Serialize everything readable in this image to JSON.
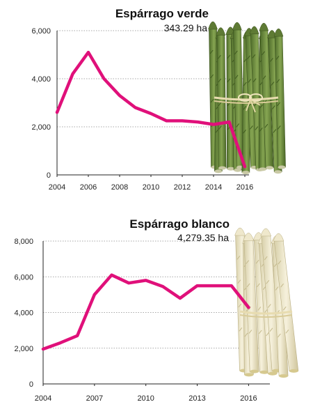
{
  "colors": {
    "line": "#e0107a"
  },
  "chart_data": [
    {
      "type": "line",
      "title": "Espárrago verde",
      "subtitle": "343.29 ha",
      "x": [
        2004,
        2005,
        2006,
        2007,
        2008,
        2009,
        2010,
        2011,
        2012,
        2013,
        2014,
        2015,
        2016
      ],
      "values": [
        2600,
        4200,
        5100,
        4000,
        3300,
        2800,
        2550,
        2250,
        2250,
        2200,
        2100,
        2200,
        343.29
      ],
      "xticks": [
        "2004",
        "2006",
        "2008",
        "2010",
        "2012",
        "2014",
        "2016"
      ],
      "yticks": [
        "0",
        "2,000",
        "4,000",
        "6,000"
      ],
      "ylim": [
        0,
        6000
      ],
      "grid": "horizontal dotted",
      "image_icon": "green-asparagus-bundle"
    },
    {
      "type": "line",
      "title": "Espárrago blanco",
      "subtitle": "4,279.35 ha",
      "x": [
        2004,
        2005,
        2006,
        2007,
        2008,
        2009,
        2010,
        2011,
        2012,
        2013,
        2014,
        2015,
        2016
      ],
      "values": [
        1950,
        2300,
        2700,
        5000,
        6100,
        5650,
        5800,
        5450,
        4800,
        5500,
        5500,
        5500,
        4279.35
      ],
      "xticks": [
        "2004",
        "2007",
        "2010",
        "2013",
        "2016"
      ],
      "yticks": [
        "0",
        "2,000",
        "4,000",
        "6,000",
        "8,000"
      ],
      "ylim": [
        0,
        8000
      ],
      "grid": "horizontal dotted",
      "image_icon": "white-asparagus-bundle"
    }
  ]
}
